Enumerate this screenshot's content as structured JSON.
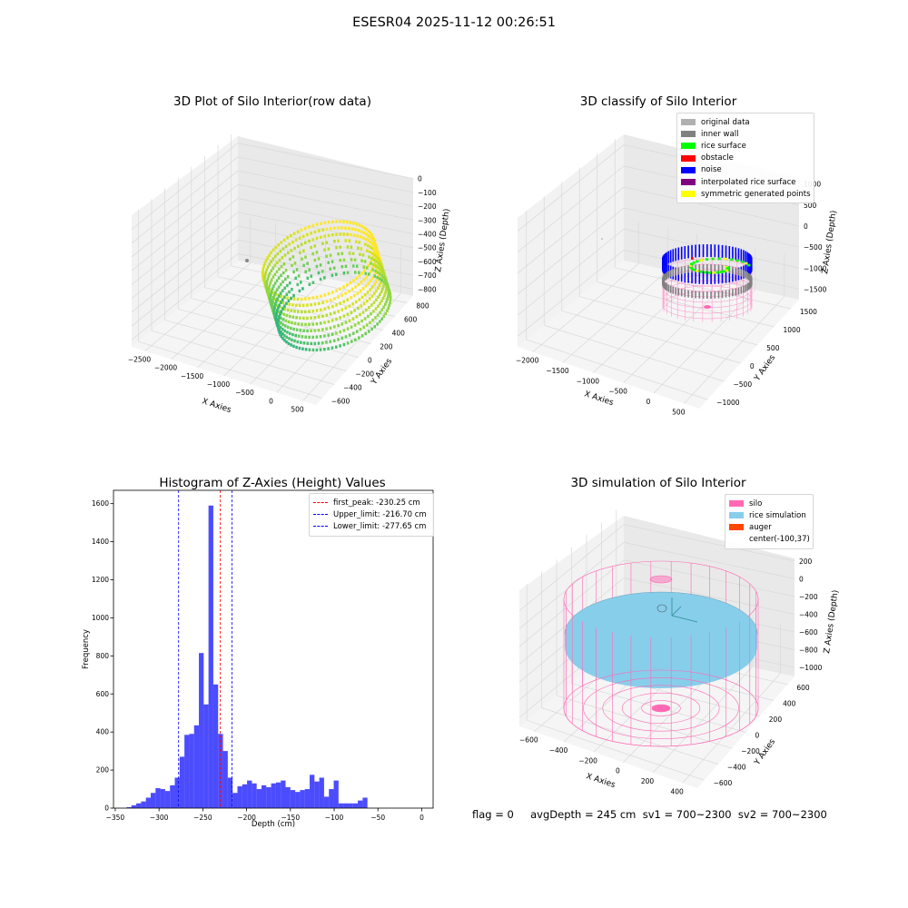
{
  "suptitle": "ESESR04 2025-11-12 00:26:51",
  "chart_data": [
    {
      "type": "scatter",
      "title": "3D Plot of Silo Interior(row data)",
      "projection": "3d",
      "xlabel": "X Axies",
      "ylabel": "Y Axies",
      "zlabel": "Z Axies (Depth)",
      "xticks": [
        "−2500",
        "−2000",
        "−1500",
        "−1000",
        "−500",
        "0",
        "500"
      ],
      "yticks": [
        "−600",
        "−400",
        "−200",
        "0",
        "200",
        "400",
        "600",
        "800"
      ],
      "zticks": [
        "0",
        "−100",
        "−200",
        "−300",
        "−400",
        "−500",
        "−600",
        "−700",
        "−800"
      ],
      "xlim": [
        -2500,
        600
      ],
      "ylim": [
        -650,
        850
      ],
      "zlim": [
        -850,
        20
      ],
      "colormap": "viridis"
    },
    {
      "type": "scatter",
      "title": "3D classify of Silo Interior",
      "projection": "3d",
      "xlabel": "X Axies",
      "ylabel": "Y Axies",
      "zlabel": "Z Axies (Depth)",
      "xticks": [
        "−2000",
        "−1500",
        "−1000",
        "−500",
        "0",
        "500"
      ],
      "yticks": [
        "−1000",
        "−500",
        "0",
        "500",
        "1000",
        "1500"
      ],
      "zticks": [
        "1000",
        "500",
        "0",
        "−500",
        "−1000",
        "−1500"
      ],
      "legend": [
        {
          "label": "original data",
          "color": "#b0b0b0"
        },
        {
          "label": "inner wall",
          "color": "#808080"
        },
        {
          "label": "rice surface",
          "color": "#00ff00"
        },
        {
          "label": "obstacle",
          "color": "#ff0000"
        },
        {
          "label": "noise",
          "color": "#0000ff"
        },
        {
          "label": "interpolated rice surface",
          "color": "#800080"
        },
        {
          "label": "symmetric generated points",
          "color": "#ffff00"
        }
      ],
      "legend_position": "upper-right"
    },
    {
      "type": "bar",
      "title": "Histogram of Z-Axies (Height) Values",
      "xlabel": "Depth (cm)",
      "ylabel": "Frequency",
      "xlim": [
        -352,
        13
      ],
      "ylim": [
        0,
        1670
      ],
      "xticks": [
        -350,
        -300,
        -250,
        -200,
        -150,
        -100,
        -50,
        0
      ],
      "yticks": [
        0,
        200,
        400,
        600,
        800,
        1000,
        1200,
        1400,
        1600
      ],
      "bin_width": 5.5,
      "bin_start": -337,
      "values": [
        5,
        15,
        25,
        35,
        55,
        80,
        105,
        100,
        90,
        120,
        160,
        270,
        385,
        390,
        435,
        815,
        545,
        1590,
        650,
        390,
        300,
        160,
        80,
        115,
        125,
        145,
        130,
        100,
        120,
        110,
        130,
        135,
        145,
        110,
        95,
        85,
        95,
        100,
        175,
        140,
        160,
        60,
        100,
        145,
        25,
        25,
        25,
        25,
        40,
        55
      ],
      "bar_color": "#0000ff",
      "vlines": [
        {
          "label": "first_peak: -230.25 cm",
          "x": -230.25,
          "color": "#ff0000"
        },
        {
          "label": "Upper_limit: -216.70 cm",
          "x": -216.7,
          "color": "#0000ff"
        },
        {
          "label": "Lower_limit: -277.65 cm",
          "x": -277.65,
          "color": "#0000ff"
        }
      ],
      "legend_position": "upper-right"
    },
    {
      "type": "surface",
      "title": "3D simulation of Silo Interior",
      "projection": "3d",
      "xlabel": "X Axies",
      "ylabel": "Y Axies",
      "zlabel": "Z Axies (Depth)",
      "xticks": [
        "−600",
        "−400",
        "−200",
        "0",
        "200",
        "400"
      ],
      "yticks": [
        "−600",
        "−400",
        "−200",
        "0",
        "200",
        "400",
        "600"
      ],
      "zticks": [
        "200",
        "0",
        "−200",
        "−400",
        "−600",
        "−800",
        "−1000"
      ],
      "legend": [
        {
          "label": "silo",
          "color": "#ff69b4"
        },
        {
          "label": "rice simulation",
          "color": "#87ceeb"
        },
        {
          "label": "auger",
          "color": "#ff4500"
        },
        {
          "label": "center(-100,37)",
          "color": ""
        }
      ],
      "legend_position": "upper-right"
    }
  ],
  "status": {
    "text": "flag = 0     avgDepth = 245 cm  sv1 = 700~2300  sv2 = 700~2300"
  }
}
